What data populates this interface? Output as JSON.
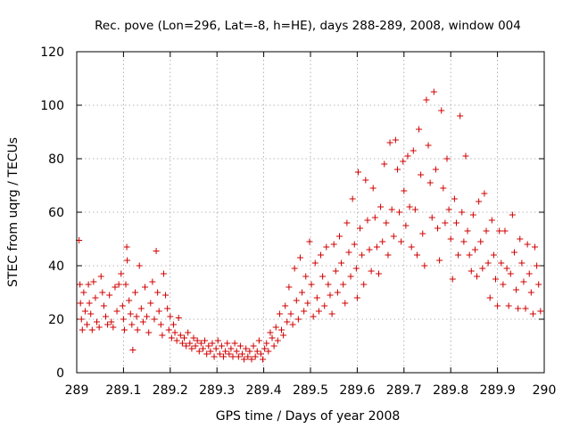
{
  "chart_data": {
    "type": "scatter",
    "title": "Rec. pove (Lon=296, Lat=-8, h=HE), days 288-289, 2008, window 004",
    "xlabel": "GPS time / Days of year 2008",
    "ylabel": "STEC from uqrg / TECUs",
    "xlim": [
      289,
      290
    ],
    "ylim": [
      0,
      120
    ],
    "xticks": [
      "289",
      "289.1",
      "289.2",
      "289.3",
      "289.4",
      "289.5",
      "289.6",
      "289.7",
      "289.8",
      "289.9",
      "290"
    ],
    "xtick_values": [
      289,
      289.1,
      289.2,
      289.3,
      289.4,
      289.5,
      289.6,
      289.7,
      289.8,
      289.9,
      290
    ],
    "yticks": [
      "0",
      "20",
      "40",
      "60",
      "80",
      "100",
      "120"
    ],
    "ytick_values": [
      0,
      20,
      40,
      60,
      80,
      100,
      120
    ],
    "grid": true,
    "marker": "plus",
    "color": "#d00000",
    "series": [
      {
        "points": [
          [
            289.005,
            49.5
          ],
          [
            289.007,
            33
          ],
          [
            289.008,
            26
          ],
          [
            289.01,
            20
          ],
          [
            289.012,
            16
          ],
          [
            289.015,
            30
          ],
          [
            289.018,
            23
          ],
          [
            289.022,
            18
          ],
          [
            289.025,
            33
          ],
          [
            289.027,
            26
          ],
          [
            289.03,
            22
          ],
          [
            289.033,
            16
          ],
          [
            289.036,
            34
          ],
          [
            289.04,
            28
          ],
          [
            289.043,
            19
          ],
          [
            289.048,
            17
          ],
          [
            289.052,
            36
          ],
          [
            289.055,
            30
          ],
          [
            289.058,
            25
          ],
          [
            289.062,
            21
          ],
          [
            289.066,
            18
          ],
          [
            289.07,
            29
          ],
          [
            289.074,
            19
          ],
          [
            289.078,
            17
          ],
          [
            289.082,
            32
          ],
          [
            289.086,
            23
          ],
          [
            289.09,
            33
          ],
          [
            289.095,
            37
          ],
          [
            289.098,
            25
          ],
          [
            289.1,
            20
          ],
          [
            289.102,
            16
          ],
          [
            289.105,
            33
          ],
          [
            289.107,
            47
          ],
          [
            289.108,
            42
          ],
          [
            289.112,
            27
          ],
          [
            289.115,
            22
          ],
          [
            289.118,
            18
          ],
          [
            289.12,
            8.5
          ],
          [
            289.125,
            30
          ],
          [
            289.128,
            21
          ],
          [
            289.13,
            16
          ],
          [
            289.134,
            40
          ],
          [
            289.138,
            24
          ],
          [
            289.142,
            19
          ],
          [
            289.146,
            32
          ],
          [
            289.15,
            21
          ],
          [
            289.154,
            15
          ],
          [
            289.158,
            26
          ],
          [
            289.162,
            34
          ],
          [
            289.166,
            20
          ],
          [
            289.17,
            45.5
          ],
          [
            289.173,
            30
          ],
          [
            289.176,
            23
          ],
          [
            289.18,
            18
          ],
          [
            289.183,
            14
          ],
          [
            289.186,
            37
          ],
          [
            289.19,
            29
          ],
          [
            289.194,
            24
          ],
          [
            289.197,
            16
          ],
          [
            289.2,
            21
          ],
          [
            289.203,
            13
          ],
          [
            289.207,
            18
          ],
          [
            289.21,
            15
          ],
          [
            289.214,
            12
          ],
          [
            289.218,
            20.5
          ],
          [
            289.222,
            14
          ],
          [
            289.226,
            11
          ],
          [
            289.23,
            13
          ],
          [
            289.234,
            10
          ],
          [
            289.238,
            15
          ],
          [
            289.242,
            11
          ],
          [
            289.246,
            9
          ],
          [
            289.25,
            13
          ],
          [
            289.254,
            10
          ],
          [
            289.258,
            12
          ],
          [
            289.262,
            8
          ],
          [
            289.266,
            11
          ],
          [
            289.27,
            9
          ],
          [
            289.274,
            12
          ],
          [
            289.278,
            7
          ],
          [
            289.282,
            10
          ],
          [
            289.286,
            8
          ],
          [
            289.29,
            11
          ],
          [
            289.294,
            6
          ],
          [
            289.298,
            9
          ],
          [
            289.302,
            12
          ],
          [
            289.306,
            7
          ],
          [
            289.31,
            10
          ],
          [
            289.314,
            6
          ],
          [
            289.318,
            8
          ],
          [
            289.322,
            11
          ],
          [
            289.326,
            7
          ],
          [
            289.33,
            9
          ],
          [
            289.334,
            6
          ],
          [
            289.338,
            11
          ],
          [
            289.342,
            8
          ],
          [
            289.346,
            6
          ],
          [
            289.35,
            10
          ],
          [
            289.354,
            7
          ],
          [
            289.358,
            5
          ],
          [
            289.362,
            9
          ],
          [
            289.366,
            6
          ],
          [
            289.37,
            8
          ],
          [
            289.374,
            5
          ],
          [
            289.378,
            10
          ],
          [
            289.382,
            6
          ],
          [
            289.386,
            8
          ],
          [
            289.39,
            12
          ],
          [
            289.394,
            7
          ],
          [
            289.398,
            5
          ],
          [
            289.402,
            9
          ],
          [
            289.406,
            11
          ],
          [
            289.41,
            8
          ],
          [
            289.414,
            15
          ],
          [
            289.418,
            13
          ],
          [
            289.422,
            10
          ],
          [
            289.426,
            17
          ],
          [
            289.43,
            12
          ],
          [
            289.434,
            22
          ],
          [
            289.438,
            16
          ],
          [
            289.442,
            14
          ],
          [
            289.446,
            25
          ],
          [
            289.45,
            19
          ],
          [
            289.454,
            32
          ],
          [
            289.458,
            22
          ],
          [
            289.462,
            18
          ],
          [
            289.466,
            39
          ],
          [
            289.47,
            27
          ],
          [
            289.474,
            20
          ],
          [
            289.478,
            43
          ],
          [
            289.482,
            30
          ],
          [
            289.486,
            23
          ],
          [
            289.49,
            36
          ],
          [
            289.494,
            26
          ],
          [
            289.498,
            49
          ],
          [
            289.502,
            33
          ],
          [
            289.506,
            21
          ],
          [
            289.51,
            41
          ],
          [
            289.514,
            28
          ],
          [
            289.518,
            23
          ],
          [
            289.522,
            44
          ],
          [
            289.526,
            36
          ],
          [
            289.53,
            25
          ],
          [
            289.534,
            47
          ],
          [
            289.538,
            33
          ],
          [
            289.542,
            29
          ],
          [
            289.546,
            22
          ],
          [
            289.55,
            48
          ],
          [
            289.554,
            38
          ],
          [
            289.558,
            30
          ],
          [
            289.562,
            51
          ],
          [
            289.566,
            41
          ],
          [
            289.57,
            33
          ],
          [
            289.574,
            26
          ],
          [
            289.578,
            56
          ],
          [
            289.582,
            45
          ],
          [
            289.586,
            36
          ],
          [
            289.59,
            65
          ],
          [
            289.594,
            48
          ],
          [
            289.598,
            39
          ],
          [
            289.6,
            28
          ],
          [
            289.602,
            75
          ],
          [
            289.606,
            54
          ],
          [
            289.61,
            44
          ],
          [
            289.614,
            33
          ],
          [
            289.618,
            72
          ],
          [
            289.622,
            57
          ],
          [
            289.626,
            46
          ],
          [
            289.63,
            38
          ],
          [
            289.634,
            69
          ],
          [
            289.638,
            58
          ],
          [
            289.642,
            47
          ],
          [
            289.646,
            37
          ],
          [
            289.65,
            62
          ],
          [
            289.654,
            49
          ],
          [
            289.658,
            78
          ],
          [
            289.662,
            56
          ],
          [
            289.666,
            44
          ],
          [
            289.67,
            86
          ],
          [
            289.674,
            61
          ],
          [
            289.678,
            51
          ],
          [
            289.682,
            87
          ],
          [
            289.686,
            76
          ],
          [
            289.69,
            60
          ],
          [
            289.694,
            49
          ],
          [
            289.698,
            79
          ],
          [
            289.7,
            68
          ],
          [
            289.704,
            55
          ],
          [
            289.708,
            81
          ],
          [
            289.712,
            62
          ],
          [
            289.716,
            47
          ],
          [
            289.72,
            83
          ],
          [
            289.724,
            61
          ],
          [
            289.728,
            44
          ],
          [
            289.732,
            91
          ],
          [
            289.736,
            74
          ],
          [
            289.74,
            52
          ],
          [
            289.744,
            40
          ],
          [
            289.748,
            102
          ],
          [
            289.752,
            85
          ],
          [
            289.756,
            71
          ],
          [
            289.76,
            58
          ],
          [
            289.764,
            105
          ],
          [
            289.768,
            76
          ],
          [
            289.772,
            54
          ],
          [
            289.776,
            42
          ],
          [
            289.78,
            98
          ],
          [
            289.784,
            69
          ],
          [
            289.788,
            56
          ],
          [
            289.792,
            80
          ],
          [
            289.796,
            61
          ],
          [
            289.8,
            50
          ],
          [
            289.804,
            35
          ],
          [
            289.808,
            65
          ],
          [
            289.812,
            56
          ],
          [
            289.816,
            44
          ],
          [
            289.82,
            96
          ],
          [
            289.824,
            60
          ],
          [
            289.828,
            49
          ],
          [
            289.832,
            81
          ],
          [
            289.836,
            53
          ],
          [
            289.84,
            44
          ],
          [
            289.844,
            38
          ],
          [
            289.848,
            59
          ],
          [
            289.852,
            46
          ],
          [
            289.856,
            36
          ],
          [
            289.86,
            64
          ],
          [
            289.864,
            49
          ],
          [
            289.868,
            39
          ],
          [
            289.872,
            67
          ],
          [
            289.876,
            53
          ],
          [
            289.88,
            41
          ],
          [
            289.884,
            28
          ],
          [
            289.888,
            57
          ],
          [
            289.892,
            44
          ],
          [
            289.896,
            35
          ],
          [
            289.9,
            25
          ],
          [
            289.904,
            53
          ],
          [
            289.908,
            41
          ],
          [
            289.912,
            33
          ],
          [
            289.916,
            53
          ],
          [
            289.92,
            39
          ],
          [
            289.924,
            25
          ],
          [
            289.928,
            37
          ],
          [
            289.932,
            59
          ],
          [
            289.936,
            45
          ],
          [
            289.94,
            31
          ],
          [
            289.944,
            24
          ],
          [
            289.948,
            50
          ],
          [
            289.952,
            41
          ],
          [
            289.956,
            34
          ],
          [
            289.96,
            24
          ],
          [
            289.964,
            48
          ],
          [
            289.968,
            37
          ],
          [
            289.972,
            30
          ],
          [
            289.976,
            22
          ],
          [
            289.98,
            47
          ],
          [
            289.984,
            40
          ],
          [
            289.988,
            33
          ],
          [
            289.992,
            23
          ]
        ]
      }
    ]
  }
}
